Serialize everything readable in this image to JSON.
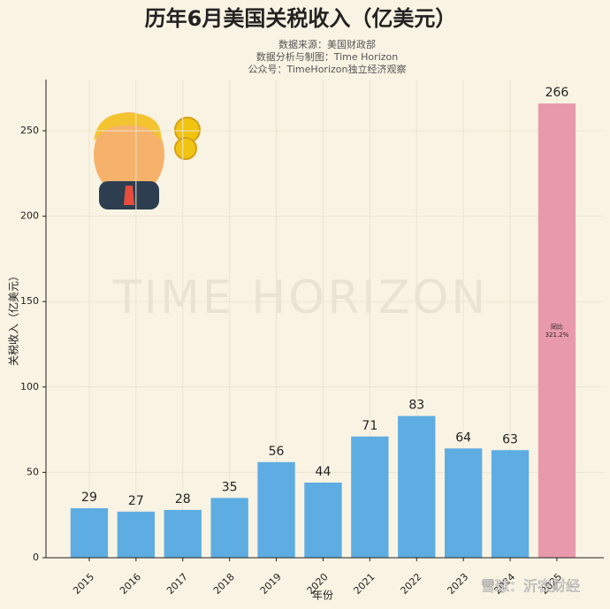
{
  "chart_data": {
    "type": "bar",
    "title": "历年6月美国关税收入（亿美元）",
    "subtitle": [
      "数据来源：美国财政部",
      "数据分析与制图：Time Horizon",
      "公众号：TimeHorizon独立经济观察"
    ],
    "x_label": "年份",
    "y_label": "关税收入（亿美元）",
    "categories": [
      "2015",
      "2016",
      "2017",
      "2018",
      "2019",
      "2020",
      "2021",
      "2022",
      "2023",
      "2024",
      "2025"
    ],
    "values": [
      29,
      27,
      28,
      35,
      56,
      44,
      71,
      83,
      64,
      63,
      266
    ],
    "colors": [
      "#5dade2",
      "#5dade2",
      "#5dade2",
      "#5dade2",
      "#5dade2",
      "#5dade2",
      "#5dade2",
      "#5dade2",
      "#5dade2",
      "#5dade2",
      "#e89aaa"
    ],
    "annotation": [
      "同比",
      "321.2%"
    ],
    "watermark": "TIME HORIZON",
    "source_mark": "雪球：沂农财经",
    "ylim": [
      0,
      280
    ],
    "yticks": [
      0,
      50,
      100,
      150,
      200,
      250
    ],
    "grid": true
  }
}
